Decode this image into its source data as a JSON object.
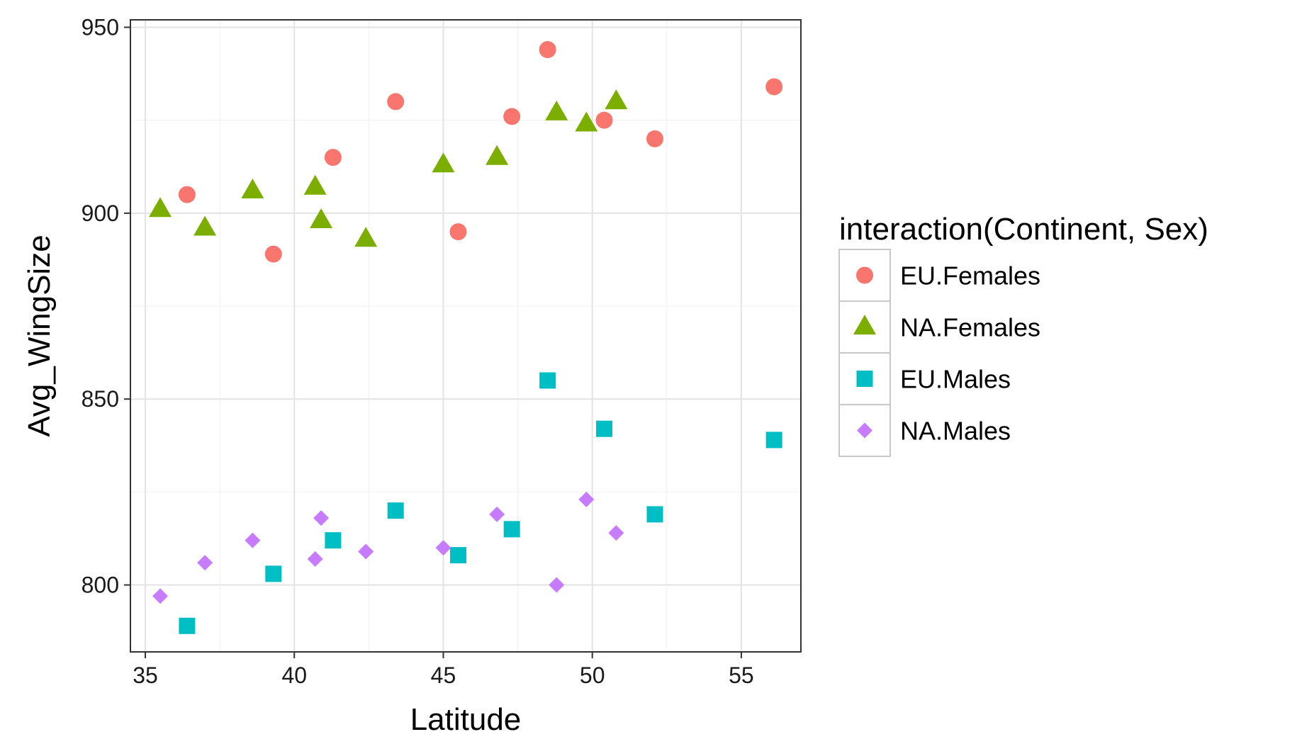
{
  "chart_data": {
    "type": "scatter",
    "title": "",
    "xlabel": "Latitude",
    "ylabel": "Avg_WingSize",
    "xlim": [
      34.5,
      57.0
    ],
    "ylim": [
      782,
      952
    ],
    "x_ticks": [
      35,
      40,
      45,
      50,
      55
    ],
    "y_ticks": [
      800,
      850,
      900,
      950
    ],
    "grid": true,
    "legend": {
      "title": "interaction(Continent, Sex)",
      "position": "right"
    },
    "series": [
      {
        "name": "EU.Females",
        "color": "#F8766D",
        "shape": "circle",
        "points": [
          [
            36.4,
            905
          ],
          [
            39.3,
            889
          ],
          [
            41.3,
            915
          ],
          [
            43.4,
            930
          ],
          [
            45.5,
            895
          ],
          [
            47.3,
            926
          ],
          [
            48.5,
            944
          ],
          [
            50.4,
            925
          ],
          [
            52.1,
            920
          ],
          [
            56.1,
            934
          ]
        ]
      },
      {
        "name": "NA.Females",
        "color": "#7CAE00",
        "shape": "triangle",
        "points": [
          [
            35.5,
            901
          ],
          [
            37.0,
            896
          ],
          [
            38.6,
            906
          ],
          [
            40.7,
            907
          ],
          [
            40.9,
            898
          ],
          [
            42.4,
            893
          ],
          [
            45.0,
            913
          ],
          [
            46.8,
            915
          ],
          [
            48.8,
            927
          ],
          [
            49.8,
            924
          ],
          [
            50.8,
            930
          ]
        ]
      },
      {
        "name": "EU.Males",
        "color": "#00BFC4",
        "shape": "square",
        "points": [
          [
            36.4,
            789
          ],
          [
            39.3,
            803
          ],
          [
            41.3,
            812
          ],
          [
            43.4,
            820
          ],
          [
            45.5,
            808
          ],
          [
            47.3,
            815
          ],
          [
            48.5,
            855
          ],
          [
            50.4,
            842
          ],
          [
            52.1,
            819
          ],
          [
            56.1,
            839
          ]
        ]
      },
      {
        "name": "NA.Males",
        "color": "#C77CFF",
        "shape": "diamond",
        "points": [
          [
            35.5,
            797
          ],
          [
            37.0,
            806
          ],
          [
            38.6,
            812
          ],
          [
            40.7,
            807
          ],
          [
            40.9,
            818
          ],
          [
            42.4,
            809
          ],
          [
            45.0,
            810
          ],
          [
            46.8,
            819
          ],
          [
            48.8,
            800
          ],
          [
            49.8,
            823
          ],
          [
            50.8,
            814
          ]
        ]
      }
    ]
  }
}
